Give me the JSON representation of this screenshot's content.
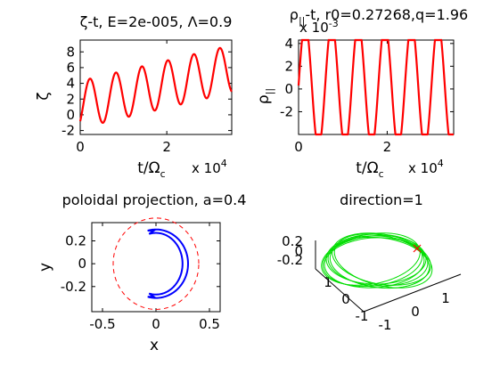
{
  "figure": {
    "subplots": [
      {
        "title_main": "ζ-t, E=2e-005, Λ=0.9"
      },
      {
        "title_main": "ρ",
        "title_sub": "||",
        "title_rest": "-t, r0=0.27268,q=1.96"
      },
      {
        "title_main": "poloidal projection, a=0.4"
      },
      {
        "title_main": "direction=1"
      }
    ]
  },
  "chart_data": [
    {
      "type": "line",
      "title": "ζ-t, E=2e-005, Λ=0.9",
      "xlabel": "t/Ω",
      "xlabel_sub": "c",
      "ylabel": "ζ",
      "x_multiplier": "x 10",
      "x_multiplier_exp": "4",
      "xlim": [
        0,
        3.5
      ],
      "ylim": [
        -2.5,
        9.5
      ],
      "xticks": [
        0,
        2
      ],
      "xtick_labels": [
        "0",
        "2"
      ],
      "yticks": [
        -2,
        0,
        2,
        4,
        6,
        8
      ],
      "ytick_labels": [
        "-2",
        "0",
        "2",
        "4",
        "6",
        "8"
      ],
      "series": [
        {
          "color": "#ff0000",
          "model": {
            "kind": "drift_sine",
            "period": 0.6,
            "amp": 3.0,
            "phase_deg": -45,
            "drift_start": 1.3,
            "drift_slope": 1.3
          },
          "x": [
            0,
            0.15,
            0.3,
            0.45,
            0.6,
            0.75,
            0.9,
            1.05,
            1.2,
            1.35,
            1.5,
            1.65,
            1.8,
            1.95,
            2.1,
            2.25,
            2.4,
            2.55,
            2.7,
            2.85,
            3.0,
            3.15,
            3.3,
            3.45,
            3.5
          ],
          "y": [
            -0.8,
            3.5,
            2.1,
            -2.3,
            1.0,
            5.0,
            2.4,
            -1.0,
            2.3,
            6.0,
            3.4,
            0.0,
            3.3,
            7.3,
            4.6,
            1.3,
            4.6,
            8.4,
            5.6,
            2.3,
            5.7,
            9.0,
            6.2,
            2.9,
            4.5
          ]
        }
      ]
    },
    {
      "type": "line",
      "title": "ρ||-t, r0=0.27268,q=1.96",
      "xlabel": "t/Ω",
      "xlabel_sub": "c",
      "ylabel": "ρ",
      "ylabel_sub": "||",
      "x_multiplier": "x 10",
      "x_multiplier_exp": "4",
      "y_multiplier": "x 10",
      "y_multiplier_exp": "-3",
      "xlim": [
        0,
        3.5
      ],
      "ylim": [
        -4,
        4.3
      ],
      "xticks": [
        0,
        2
      ],
      "xtick_labels": [
        "0",
        "2"
      ],
      "yticks": [
        -2,
        0,
        2,
        4
      ],
      "ytick_labels": [
        "-2",
        "0",
        "2",
        "4"
      ],
      "series": [
        {
          "color": "#ff0000",
          "model": {
            "kind": "clipped_sine",
            "period": 0.6,
            "amp": 5.5,
            "offset": 0.3,
            "phase_deg": 0
          },
          "x": [
            0,
            0.15,
            0.3,
            0.45,
            0.6,
            0.75,
            0.9,
            1.05,
            1.2
          ],
          "y": [
            0.3,
            4.3,
            0.3,
            -4.0,
            0.3,
            4.3,
            0.3,
            -4.0,
            0.3
          ]
        }
      ]
    },
    {
      "type": "line",
      "title": "poloidal projection, a=0.4",
      "xlabel": "x",
      "ylabel": "y",
      "xlim": [
        -0.6,
        0.6
      ],
      "ylim": [
        -0.42,
        0.36
      ],
      "xticks": [
        -0.5,
        0,
        0.5
      ],
      "xtick_labels": [
        "-0.5",
        "0",
        "0.5"
      ],
      "yticks": [
        -0.2,
        0,
        0.2
      ],
      "ytick_labels": [
        "-0.2",
        "0",
        "0.2"
      ],
      "series": [
        {
          "color": "#0000ff",
          "model": {
            "kind": "banana",
            "center": [
              0,
              0
            ],
            "r_out": 0.3,
            "r_in": 0.27,
            "theta_min_deg": -105,
            "theta_max_deg": 105,
            "tip_x": -0.02
          }
        },
        {
          "color": "#ff0000",
          "dashed": true,
          "model": {
            "kind": "circle",
            "center": [
              0,
              0
            ],
            "radius": 0.4
          }
        }
      ]
    },
    {
      "type": "line",
      "title": "direction=1",
      "ztick_labels": [
        "0.2",
        "0",
        "-0.2"
      ],
      "xtick_labels": [
        "-1",
        "0",
        "1"
      ],
      "ytick_labels": [
        "1",
        "0",
        "-1"
      ],
      "series": [
        {
          "color": "#00dd00",
          "model": {
            "kind": "torus_3d",
            "rings": 8,
            "rx": 1.0,
            "ry": 0.55
          }
        },
        {
          "color": "#ff0000",
          "marker": "x",
          "point": [
            0.95,
            0.22,
            0.2
          ]
        }
      ]
    }
  ]
}
